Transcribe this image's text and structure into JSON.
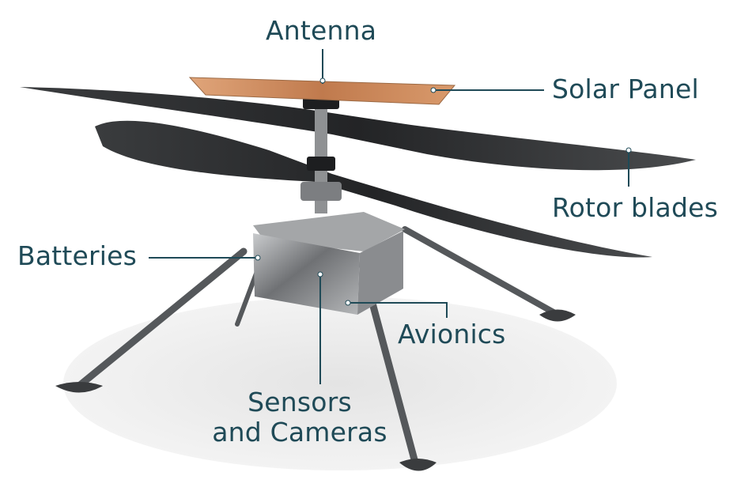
{
  "labels": {
    "antenna": "Antenna",
    "solar_panel": "Solar Panel",
    "rotor_blades": "Rotor blades",
    "batteries": "Batteries",
    "avionics": "Avionics",
    "sensors_line1": "Sensors",
    "sensors_line2": "and Cameras"
  },
  "colors": {
    "label_text": "#1f4a57",
    "leader_line": "#1f4a57",
    "shadow": "#ececec",
    "blade": "#2b2d2f",
    "leg": "#55585b",
    "body": "#9a9c9e",
    "solar_panel": "#c98a5a"
  }
}
